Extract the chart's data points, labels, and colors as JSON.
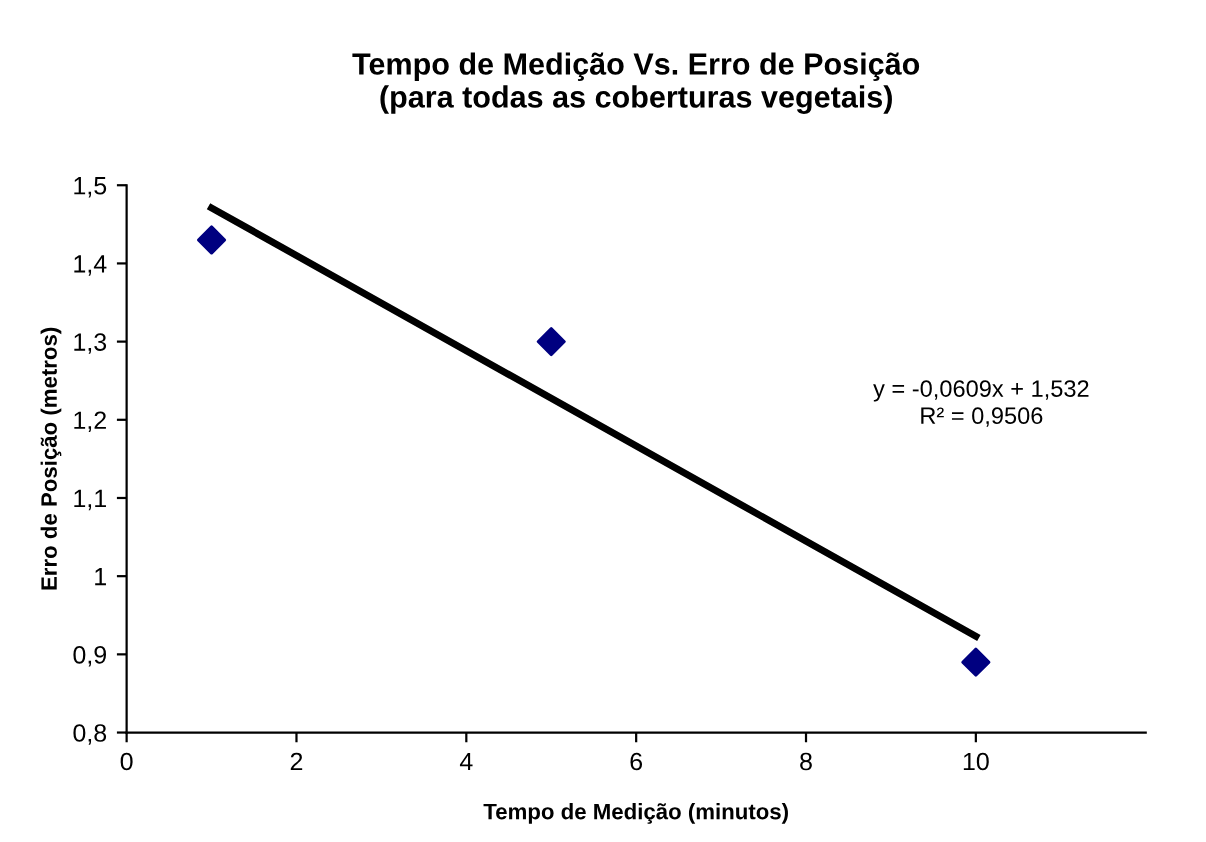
{
  "chart_data": {
    "type": "scatter",
    "title": "Tempo de Medição Vs. Erro de Posição\n(para todas as coberturas vegetais)",
    "xlabel": "Tempo de Medição (minutos)",
    "ylabel": "Erro de Posição (metros)",
    "series": [
      {
        "color": "#000080",
        "marker": "diamond",
        "x": [
          1,
          5,
          10
        ],
        "values": [
          1.43,
          1.3,
          0.89
        ]
      },
      {
        "type": "line",
        "color": "#000000",
        "marker": "none",
        "line_style": "solid",
        "x": [
          1,
          10
        ],
        "values": [
          1.471,
          0.923
        ]
      }
    ],
    "annotations": [
      "y = -0,0609x + 1,532\nR² = 0,9506"
    ],
    "xlim": [
      0,
      12
    ],
    "xticks": [
      0,
      2,
      4,
      6,
      8,
      10
    ],
    "ylim": [
      0.8,
      1.5
    ],
    "yticks": [
      {
        "value": 0.8,
        "label": "0,8"
      },
      {
        "value": 0.9,
        "label": "0,9"
      },
      {
        "value": 1,
        "label": "1"
      },
      {
        "value": 1.1,
        "label": "1,1"
      },
      {
        "value": 1.2,
        "label": "1,2"
      },
      {
        "value": 1.3,
        "label": "1,3"
      },
      {
        "value": 1.4,
        "label": "1,4"
      },
      {
        "value": 1.5,
        "label": "1,5"
      }
    ],
    "grid": false,
    "legend": false
  }
}
